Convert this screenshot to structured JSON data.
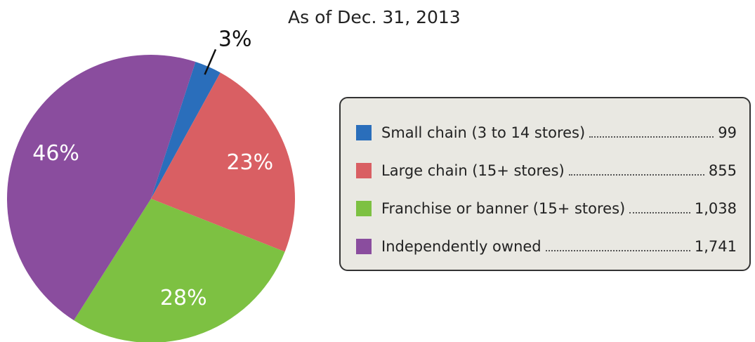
{
  "chart_data": {
    "type": "pie",
    "subtitle": "As of Dec. 31, 2013",
    "categories": [
      "Small chain (3 to 14 stores)",
      "Large chain (15+ stores)",
      "Franchise or banner (15+ stores)",
      "Independently owned"
    ],
    "values": [
      3,
      23,
      28,
      46
    ],
    "value_labels": [
      "3%",
      "23%",
      "28%",
      "46%"
    ],
    "count_labels": [
      "99",
      "855",
      "1,038",
      "1,741"
    ],
    "colors": [
      "#2a6ebb",
      "#d95f63",
      "#7dc142",
      "#8a4d9e"
    ]
  }
}
